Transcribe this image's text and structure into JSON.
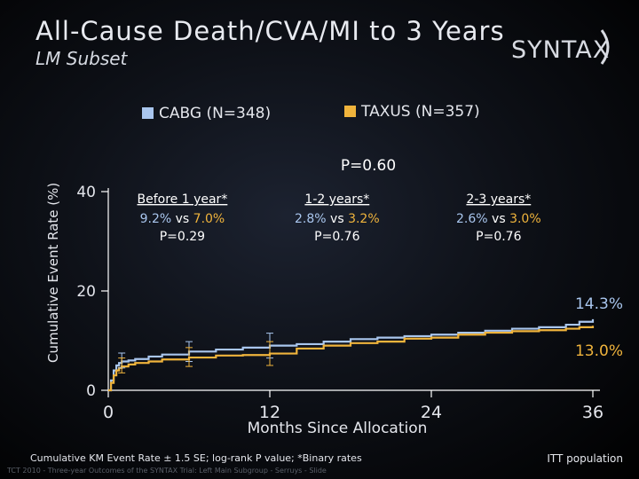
{
  "slide": {
    "title": "All-Cause Death/CVA/MI to 3 Years",
    "subtitle": "LM Subset",
    "logo_text": "SYNTAX",
    "footnote": "Cumulative KM Event Rate ± 1.5 SE; log-rank P value; *Binary rates",
    "population": "ITT population",
    "source": "TCT 2010 - Three-year Outcomes of the SYNTAX Trial: Left Main Subgroup - Serruys - Slide"
  },
  "colors": {
    "cabg": "#a9c6ee",
    "taxus": "#f0b43c",
    "axis": "#ffffff",
    "pvalue": "#ffffff"
  },
  "chart_data": {
    "type": "line",
    "title": "All-Cause Death/CVA/MI to 3 Years",
    "subtitle": "LM Subset",
    "xlabel": "Months Since Allocation",
    "ylabel": "Cumulative Event Rate (%)",
    "xlim": [
      0,
      36
    ],
    "ylim": [
      0,
      40
    ],
    "xticks": [
      0,
      12,
      24,
      36
    ],
    "yticks": [
      0,
      20,
      40
    ],
    "grid": false,
    "legend": "top",
    "overall_p": "P=0.60",
    "series": [
      {
        "name": "CABG (N=348)",
        "end_label": "14.3%",
        "x": [
          0,
          0.2,
          0.4,
          0.6,
          0.8,
          1.0,
          1.5,
          2.0,
          3.0,
          4.0,
          6.0,
          8.0,
          10.0,
          12.0,
          14.0,
          16.0,
          18.0,
          20.0,
          22.0,
          24.0,
          26.0,
          28.0,
          30.0,
          32.0,
          34.0,
          35.0,
          36.0
        ],
        "y": [
          0,
          2.0,
          4.0,
          5.0,
          5.5,
          5.8,
          6.0,
          6.3,
          6.8,
          7.2,
          7.8,
          8.2,
          8.6,
          9.0,
          9.3,
          9.8,
          10.3,
          10.6,
          10.9,
          11.2,
          11.6,
          12.0,
          12.4,
          12.7,
          13.2,
          13.8,
          14.3
        ]
      },
      {
        "name": "TAXUS (N=357)",
        "end_label": "13.0%",
        "x": [
          0,
          0.2,
          0.4,
          0.6,
          0.8,
          1.0,
          1.5,
          2.0,
          3.0,
          4.0,
          6.0,
          8.0,
          10.0,
          12.0,
          14.0,
          16.0,
          18.0,
          20.0,
          22.0,
          24.0,
          26.0,
          28.0,
          30.0,
          32.0,
          34.0,
          35.0,
          36.0
        ],
        "y": [
          0,
          1.5,
          3.0,
          4.0,
          4.5,
          4.8,
          5.2,
          5.5,
          5.8,
          6.2,
          6.6,
          7.0,
          7.1,
          7.4,
          8.4,
          9.0,
          9.5,
          9.8,
          10.4,
          10.6,
          11.2,
          11.6,
          11.9,
          12.1,
          12.4,
          12.7,
          13.0
        ]
      }
    ],
    "error_bars": [
      {
        "series": 0,
        "x": 1,
        "y": 5.8,
        "lo": 4.5,
        "hi": 7.5
      },
      {
        "series": 1,
        "x": 1,
        "y": 4.8,
        "lo": 3.5,
        "hi": 6.5
      },
      {
        "series": 0,
        "x": 6,
        "y": 7.8,
        "lo": 5.8,
        "hi": 9.8
      },
      {
        "series": 1,
        "x": 6,
        "y": 6.6,
        "lo": 4.8,
        "hi": 8.6
      },
      {
        "series": 0,
        "x": 12,
        "y": 9.0,
        "lo": 6.5,
        "hi": 11.5
      },
      {
        "series": 1,
        "x": 12,
        "y": 7.4,
        "lo": 5.0,
        "hi": 9.8
      }
    ],
    "annotations": [
      {
        "heading": "Before 1 year*",
        "cabg": "9.2%",
        "vs": "vs",
        "taxus": "7.0%",
        "p": "P=0.29",
        "x": 5.5
      },
      {
        "heading": "1-2 years*",
        "cabg": "2.8%",
        "vs": "vs",
        "taxus": "3.2%",
        "p": "P=0.76",
        "x": 17
      },
      {
        "heading": "2-3 years*",
        "cabg": "2.6%",
        "vs": "vs",
        "taxus": "3.0%",
        "p": "P=0.76",
        "x": 29
      }
    ]
  }
}
